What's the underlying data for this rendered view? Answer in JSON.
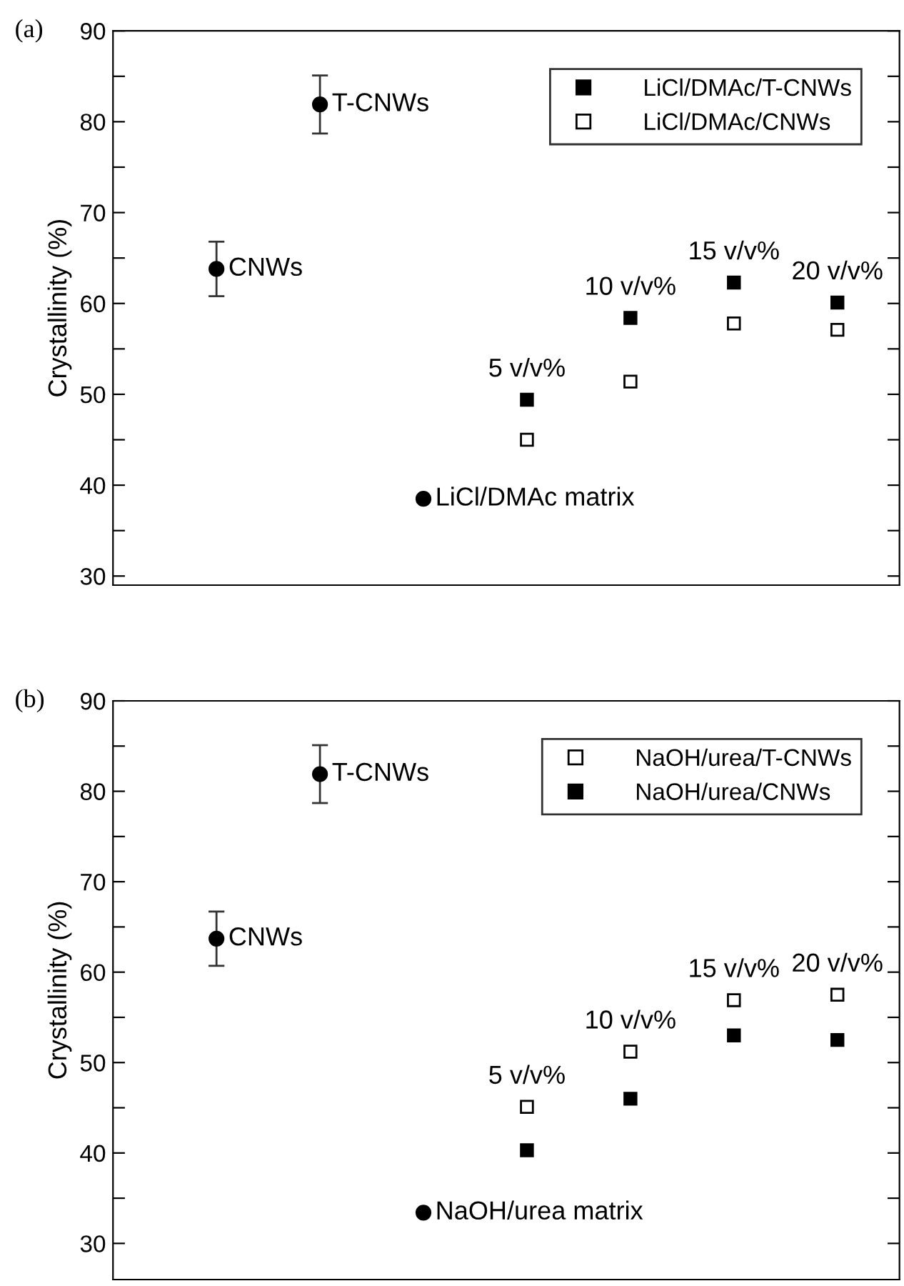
{
  "chart_data": [
    {
      "type": "scatter",
      "title": "(a)",
      "ylabel": "Crystallinity (%)",
      "categories": [
        "CNWs",
        "T-CNWs",
        "LiCl/DMAc matrix",
        "5 v/v%",
        "10 v/v%",
        "15 v/v%",
        "20 v/v%"
      ],
      "series": [
        {
          "color": "#000000",
          "marker": "circle",
          "values": [
            63.8,
            81.9,
            38.5,
            null,
            null,
            null,
            null
          ],
          "errors": [
            3.0,
            3.2,
            null,
            null,
            null,
            null,
            null
          ]
        },
        {
          "name": "LiCl/DMAc/T-CNWs",
          "color": "#000000",
          "marker": "square",
          "values": [
            null,
            null,
            null,
            49.4,
            58.4,
            62.3,
            60.1
          ]
        },
        {
          "name": "LiCl/DMAc/CNWs",
          "color": "#ffffff",
          "marker": "square",
          "values": [
            null,
            null,
            null,
            45.0,
            51.4,
            57.8,
            57.1
          ]
        }
      ],
      "ylim": [
        29,
        90
      ],
      "yticks": [
        30,
        {
          "value": 35,
          "label": null
        },
        40,
        {
          "value": 45,
          "label": null
        },
        50,
        {
          "value": 55,
          "label": null
        },
        60,
        {
          "value": 65,
          "label": null
        },
        70,
        {
          "value": 75,
          "label": null
        },
        80,
        {
          "value": 85,
          "label": null
        },
        90
      ],
      "tick_labels": "y",
      "legend": "top right",
      "grid": false
    },
    {
      "type": "scatter",
      "title": "(b)",
      "ylabel": "Crystallinity (%)",
      "categories": [
        "CNWs",
        "T-CNWs",
        "NaOH/urea matrix",
        "5 v/v%",
        "10 v/v%",
        "15 v/v%",
        "20 v/v%"
      ],
      "series": [
        {
          "color": "#000000",
          "marker": "circle",
          "values": [
            63.7,
            81.9,
            33.4,
            null,
            null,
            null,
            null
          ],
          "errors": [
            3.0,
            3.2,
            null,
            null,
            null,
            null,
            null
          ]
        },
        {
          "name": "NaOH/urea/T-CNWs",
          "color": "#ffffff",
          "marker": "square",
          "values": [
            null,
            null,
            null,
            45.1,
            51.2,
            56.9,
            57.5
          ]
        },
        {
          "name": "NaOH/urea/CNWs",
          "color": "#000000",
          "marker": "square",
          "values": [
            null,
            null,
            null,
            40.3,
            46.0,
            53.0,
            52.5
          ]
        }
      ],
      "ylim": [
        26,
        90
      ],
      "yticks": [
        30,
        {
          "value": 35,
          "label": null
        },
        40,
        {
          "value": 45,
          "label": null
        },
        50,
        {
          "value": 55,
          "label": null
        },
        60,
        {
          "value": 65,
          "label": null
        },
        70,
        {
          "value": 75,
          "label": null
        },
        80,
        {
          "value": 85,
          "label": null
        },
        90
      ],
      "tick_labels": "y",
      "legend": "top right",
      "grid": false
    }
  ]
}
